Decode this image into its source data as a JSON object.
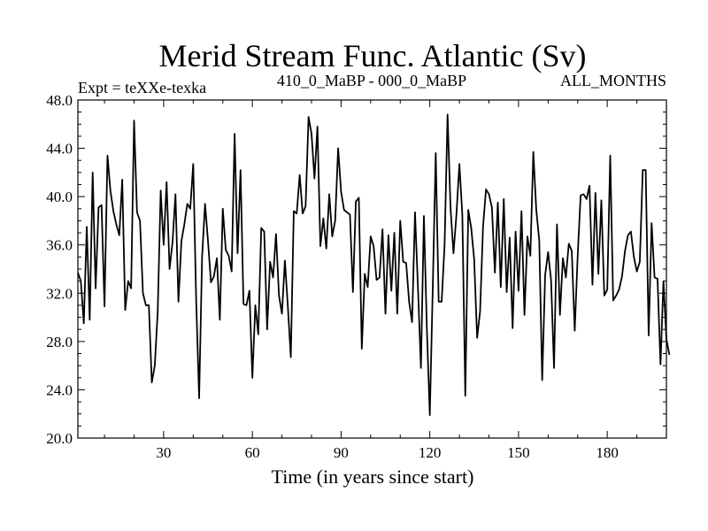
{
  "chart_data": {
    "type": "line",
    "title": "Merid Stream Func. Atlantic (Sv)",
    "subtitle_left": "Expt = teXXe-texka",
    "subtitle_center": "410_0_MaBP - 000_0_MaBP",
    "subtitle_right": "ALL_MONTHS",
    "xlabel": "Time (in years since start)",
    "ylabel": "",
    "xlim": [
      1,
      200
    ],
    "ylim": [
      20,
      48
    ],
    "xticks": [
      30,
      60,
      90,
      120,
      150,
      180
    ],
    "xtick_labels": [
      "30",
      "60",
      "90",
      "120",
      "150",
      "180"
    ],
    "yticks": [
      20,
      24,
      28,
      32,
      36,
      40,
      44,
      48
    ],
    "ytick_labels": [
      "20.0",
      "24.0",
      "28.0",
      "32.0",
      "36.0",
      "40.0",
      "44.0",
      "48.0"
    ],
    "grid": false,
    "series": [
      {
        "name": "Merid Stream Func. Atlantic",
        "x_start": 1,
        "x_step": 1,
        "values": [
          33.7,
          33.0,
          29.5,
          37.5,
          29.8,
          42.0,
          32.4,
          39.1,
          39.3,
          30.9,
          43.4,
          40.5,
          38.8,
          37.7,
          36.8,
          41.4,
          30.6,
          33.0,
          32.4,
          46.3,
          38.7,
          38.0,
          32.0,
          31.0,
          31.0,
          24.6,
          26.0,
          30.5,
          40.5,
          36.0,
          41.2,
          34.0,
          36.2,
          40.2,
          31.3,
          36.3,
          37.7,
          39.4,
          39.0,
          42.7,
          31.4,
          23.3,
          35.0,
          39.4,
          36.3,
          32.9,
          33.4,
          34.9,
          29.8,
          39.0,
          35.6,
          35.1,
          33.8,
          45.2,
          35.3,
          42.2,
          31.1,
          31.0,
          32.2,
          25.0,
          31.0,
          28.6,
          37.4,
          37.1,
          29.0,
          34.6,
          33.3,
          36.9,
          31.8,
          30.3,
          34.7,
          30.9,
          26.7,
          38.8,
          38.6,
          41.8,
          38.6,
          39.2,
          46.6,
          45.2,
          41.5,
          45.8,
          35.9,
          38.2,
          35.7,
          40.2,
          36.7,
          38.0,
          44.0,
          40.4,
          38.9,
          38.7,
          38.5,
          32.1,
          39.6,
          39.9,
          27.4,
          33.6,
          32.5,
          36.7,
          35.9,
          33.1,
          33.3,
          37.3,
          30.3,
          36.8,
          32.2,
          37.0,
          30.3,
          38.0,
          34.6,
          34.5,
          31.3,
          29.6,
          38.7,
          32.4,
          25.8,
          38.4,
          29.1,
          21.9,
          32.5,
          43.6,
          31.3,
          31.3,
          36.0,
          46.8,
          39.1,
          35.3,
          38.5,
          42.7,
          38.5,
          23.5,
          38.9,
          37.4,
          34.8,
          28.3,
          30.5,
          37.5,
          40.6,
          40.2,
          39.1,
          33.7,
          39.5,
          32.5,
          39.8,
          32.1,
          36.6,
          29.1,
          37.1,
          32.2,
          38.8,
          30.2,
          36.7,
          35.1,
          43.7,
          38.9,
          36.4,
          24.8,
          33.5,
          35.4,
          33.1,
          25.8,
          37.7,
          30.2,
          34.9,
          33.3,
          36.1,
          35.5,
          28.9,
          35.1,
          40.1,
          40.2,
          39.8,
          40.9,
          32.7,
          40.3,
          33.6,
          39.7,
          31.8,
          32.3,
          43.4,
          31.4,
          31.8,
          32.3,
          33.4,
          35.5,
          36.8,
          37.1,
          35.0,
          33.8,
          34.6,
          42.2,
          42.2,
          28.5,
          37.8,
          33.3,
          33.2,
          26.1,
          33.0,
          28.2,
          26.9
        ]
      }
    ]
  }
}
